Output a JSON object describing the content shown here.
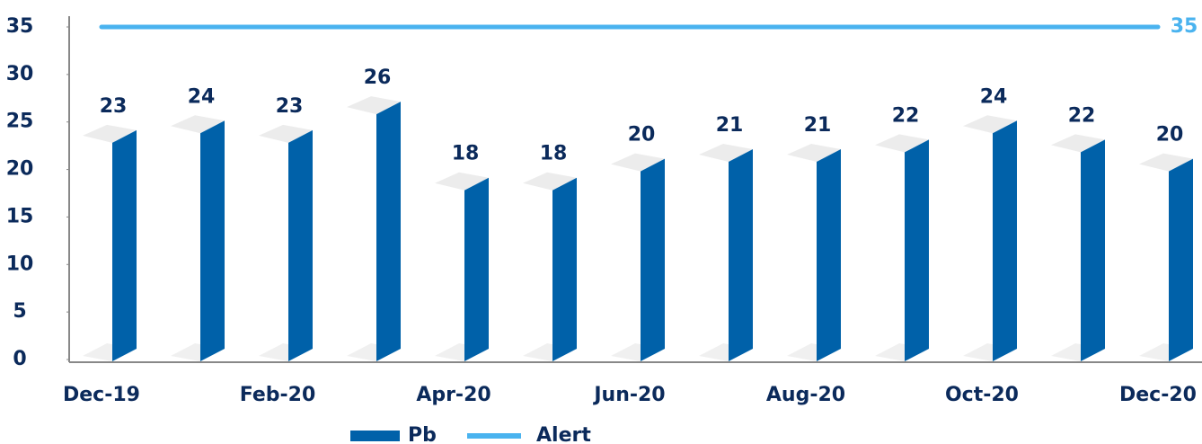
{
  "chart_data": {
    "type": "bar",
    "categories": [
      "Dec-19",
      null,
      "Feb-20",
      null,
      "Apr-20",
      null,
      "Jun-20",
      null,
      "Aug-20",
      null,
      "Oct-20",
      null,
      "Dec-20"
    ],
    "series": [
      {
        "name": "Pb",
        "type": "bar",
        "color": "#0061a9",
        "values": [
          23,
          24,
          23,
          26,
          18,
          18,
          20,
          21,
          21,
          22,
          24,
          22,
          20
        ]
      },
      {
        "name": "Alert",
        "type": "line",
        "color": "#4ab3ef",
        "values": [
          35,
          35,
          35,
          35,
          35,
          35,
          35,
          35,
          35,
          35,
          35,
          35,
          35
        ]
      }
    ],
    "ylim": [
      0,
      35
    ],
    "yticks": [
      0,
      5,
      10,
      15,
      20,
      25,
      30,
      35
    ],
    "legend": "bottom"
  }
}
